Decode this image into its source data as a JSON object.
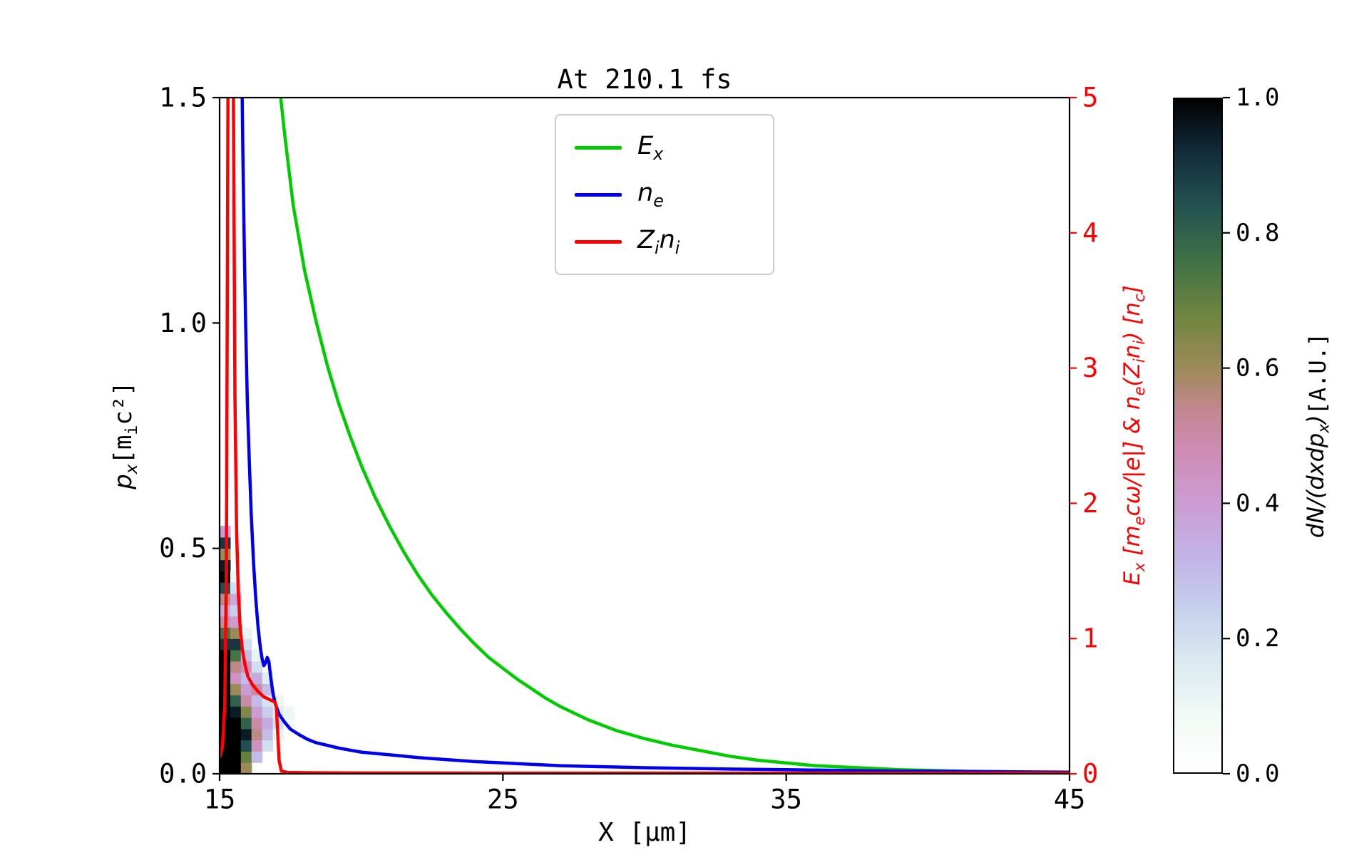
{
  "title": "At 210.1 fs",
  "axes": {
    "x": {
      "label": "X [μm]",
      "range": [
        15,
        45
      ],
      "ticks": [
        15,
        25,
        35,
        45
      ]
    },
    "y_left": {
      "label_math": "p_x",
      "label_unit": " [m_ic²]",
      "range": [
        0,
        1.5
      ],
      "ticks": [
        "0.0",
        "0.5",
        "1.0",
        "1.5"
      ]
    },
    "y_right": {
      "label": "E_x [m_ecω/|e|] & n_e(Z_in_i) [n_c]",
      "color": "#ff0000",
      "range": [
        0,
        5
      ],
      "ticks": [
        "0",
        "1",
        "2",
        "3",
        "4",
        "5"
      ]
    }
  },
  "legend": {
    "entries": [
      {
        "id": "Ex",
        "label": "E_x",
        "color": "#00cc00"
      },
      {
        "id": "ne",
        "label": "n_e",
        "color": "#0000ee"
      },
      {
        "id": "Zini",
        "label": "Z_in_i",
        "color": "#ff0000"
      }
    ]
  },
  "colorbar": {
    "label_math": "dN/(dxdp_x)",
    "label_unit": " [A.U.]",
    "ticks": [
      "0.0",
      "0.2",
      "0.4",
      "0.6",
      "0.8",
      "1.0"
    ],
    "stops": [
      {
        "v": 0.0,
        "c": "#ffffff"
      },
      {
        "v": 0.08,
        "c": "#f3faf6"
      },
      {
        "v": 0.16,
        "c": "#dcebf1"
      },
      {
        "v": 0.24,
        "c": "#c6d1ee"
      },
      {
        "v": 0.32,
        "c": "#c2b3e6"
      },
      {
        "v": 0.4,
        "c": "#cb9cd3"
      },
      {
        "v": 0.48,
        "c": "#cf8bb4"
      },
      {
        "v": 0.54,
        "c": "#c3878f"
      },
      {
        "v": 0.6,
        "c": "#9d8a58"
      },
      {
        "v": 0.68,
        "c": "#6f853f"
      },
      {
        "v": 0.76,
        "c": "#3f7146"
      },
      {
        "v": 0.84,
        "c": "#235350"
      },
      {
        "v": 0.92,
        "c": "#132c3d"
      },
      {
        "v": 1.0,
        "c": "#000000"
      }
    ]
  },
  "chart_data": {
    "type": "line+heatmap",
    "title": "At 210.1 fs",
    "xlabel": "X [μm]",
    "left_ylabel": "p_x [m_i c²]",
    "right_ylabel": "E_x [m_e cω/|e|] & n_e(Z_i n_i) [n_c]",
    "x_range": [
      15,
      45
    ],
    "left_range": [
      0,
      1.5
    ],
    "right_range": [
      0,
      5
    ],
    "legend_position": "upper center-left",
    "series": [
      {
        "id": "Ex",
        "name": "E_x",
        "axis": "right",
        "color": "#00cc00",
        "points": [
          [
            17.0,
            5.3
          ],
          [
            17.3,
            4.72
          ],
          [
            17.6,
            4.2
          ],
          [
            18.0,
            3.72
          ],
          [
            18.4,
            3.35
          ],
          [
            18.8,
            3.02
          ],
          [
            19.2,
            2.74
          ],
          [
            19.6,
            2.5
          ],
          [
            20.0,
            2.28
          ],
          [
            20.5,
            2.04
          ],
          [
            21.0,
            1.83
          ],
          [
            21.5,
            1.64
          ],
          [
            22.0,
            1.47
          ],
          [
            22.5,
            1.32
          ],
          [
            23.0,
            1.19
          ],
          [
            23.5,
            1.07
          ],
          [
            24.0,
            0.96
          ],
          [
            24.5,
            0.86
          ],
          [
            25.0,
            0.78
          ],
          [
            25.5,
            0.7
          ],
          [
            26.0,
            0.63
          ],
          [
            26.5,
            0.56
          ],
          [
            27.0,
            0.5
          ],
          [
            27.5,
            0.45
          ],
          [
            28.0,
            0.4
          ],
          [
            28.5,
            0.36
          ],
          [
            29.0,
            0.32
          ],
          [
            29.5,
            0.29
          ],
          [
            30.0,
            0.26
          ],
          [
            31.0,
            0.21
          ],
          [
            32.0,
            0.17
          ],
          [
            33.0,
            0.13
          ],
          [
            34.0,
            0.1
          ],
          [
            35.0,
            0.08
          ],
          [
            36.0,
            0.06
          ],
          [
            37.0,
            0.05
          ],
          [
            38.0,
            0.04
          ],
          [
            39.0,
            0.03
          ],
          [
            40.0,
            0.025
          ],
          [
            41.0,
            0.02
          ],
          [
            42.0,
            0.015
          ],
          [
            43.0,
            0.012
          ],
          [
            44.0,
            0.01
          ],
          [
            45.0,
            0.008
          ]
        ]
      },
      {
        "id": "ne",
        "name": "n_e",
        "axis": "right",
        "color": "#0000ee",
        "points": [
          [
            15.78,
            5.3
          ],
          [
            15.82,
            4.6
          ],
          [
            15.87,
            3.9
          ],
          [
            15.92,
            3.3
          ],
          [
            15.98,
            2.75
          ],
          [
            16.05,
            2.3
          ],
          [
            16.12,
            1.9
          ],
          [
            16.2,
            1.55
          ],
          [
            16.28,
            1.28
          ],
          [
            16.36,
            1.08
          ],
          [
            16.44,
            0.93
          ],
          [
            16.5,
            0.85
          ],
          [
            16.56,
            0.8
          ],
          [
            16.62,
            0.82
          ],
          [
            16.68,
            0.86
          ],
          [
            16.74,
            0.83
          ],
          [
            16.8,
            0.72
          ],
          [
            16.88,
            0.6
          ],
          [
            16.96,
            0.52
          ],
          [
            17.1,
            0.44
          ],
          [
            17.3,
            0.38
          ],
          [
            17.5,
            0.33
          ],
          [
            17.8,
            0.29
          ],
          [
            18.1,
            0.255
          ],
          [
            18.4,
            0.23
          ],
          [
            18.8,
            0.21
          ],
          [
            19.2,
            0.19
          ],
          [
            19.6,
            0.175
          ],
          [
            20.0,
            0.16
          ],
          [
            20.5,
            0.15
          ],
          [
            21.0,
            0.14
          ],
          [
            21.5,
            0.13
          ],
          [
            22.0,
            0.12
          ],
          [
            23.0,
            0.105
          ],
          [
            24.0,
            0.09
          ],
          [
            25.0,
            0.08
          ],
          [
            26.0,
            0.07
          ],
          [
            27.0,
            0.06
          ],
          [
            28.0,
            0.055
          ],
          [
            29.0,
            0.05
          ],
          [
            30.0,
            0.045
          ],
          [
            31.5,
            0.04
          ],
          [
            33.0,
            0.035
          ],
          [
            35.0,
            0.03
          ],
          [
            37.0,
            0.025
          ],
          [
            39.0,
            0.02
          ],
          [
            41.0,
            0.018
          ],
          [
            43.0,
            0.015
          ],
          [
            45.0,
            0.012
          ]
        ]
      },
      {
        "id": "Zini",
        "name": "Z_in_i",
        "axis": "right",
        "color": "#ff0000",
        "points": [
          [
            15.0,
            0.12
          ],
          [
            15.1,
            0.2
          ],
          [
            15.18,
            0.5
          ],
          [
            15.24,
            1.5
          ],
          [
            15.3,
            5.3
          ],
          [
            15.48,
            5.3
          ],
          [
            15.54,
            2.8
          ],
          [
            15.6,
            1.8
          ],
          [
            15.66,
            1.35
          ],
          [
            15.72,
            1.1
          ],
          [
            15.8,
            0.92
          ],
          [
            15.9,
            0.8
          ],
          [
            16.0,
            0.72
          ],
          [
            16.15,
            0.66
          ],
          [
            16.35,
            0.61
          ],
          [
            16.55,
            0.57
          ],
          [
            16.75,
            0.55
          ],
          [
            16.95,
            0.53
          ],
          [
            17.0,
            0.5
          ],
          [
            17.05,
            0.3
          ],
          [
            17.1,
            0.1
          ],
          [
            17.18,
            0.02
          ],
          [
            17.4,
            0.01
          ],
          [
            18.0,
            0.008
          ],
          [
            20.0,
            0.006
          ],
          [
            25.0,
            0.005
          ],
          [
            30.0,
            0.005
          ],
          [
            35.0,
            0.005
          ],
          [
            40.0,
            0.005
          ],
          [
            45.0,
            0.005
          ]
        ]
      }
    ],
    "histogram": {
      "label": "dN/(dxdp_x) [A.U.]",
      "value_range": [
        0,
        1
      ],
      "x0": 15.0,
      "dx": 0.375,
      "p0": 0.0,
      "dp": 0.025,
      "cells": [
        [
          0,
          0,
          1
        ],
        [
          0,
          1,
          1
        ],
        [
          0,
          2,
          1
        ],
        [
          0,
          3,
          1
        ],
        [
          0,
          4,
          1
        ],
        [
          0,
          5,
          1
        ],
        [
          0,
          6,
          1
        ],
        [
          0,
          7,
          1
        ],
        [
          0,
          8,
          1
        ],
        [
          0,
          9,
          1
        ],
        [
          0,
          10,
          1
        ],
        [
          0,
          11,
          0.9
        ],
        [
          0,
          12,
          0.75
        ],
        [
          0,
          13,
          0.5
        ],
        [
          0,
          14,
          0.35
        ],
        [
          0,
          15,
          0.55
        ],
        [
          0,
          16,
          0.85
        ],
        [
          0,
          17,
          1
        ],
        [
          0,
          18,
          0.95
        ],
        [
          0,
          19,
          0.6
        ],
        [
          0,
          20,
          0.9
        ],
        [
          0,
          21,
          0.4
        ],
        [
          1,
          0,
          1
        ],
        [
          1,
          1,
          1
        ],
        [
          1,
          2,
          1
        ],
        [
          1,
          3,
          1
        ],
        [
          1,
          4,
          1
        ],
        [
          1,
          5,
          0.95
        ],
        [
          1,
          6,
          0.8
        ],
        [
          1,
          7,
          0.6
        ],
        [
          1,
          8,
          0.45
        ],
        [
          1,
          9,
          0.55
        ],
        [
          1,
          10,
          0.75
        ],
        [
          1,
          11,
          0.9
        ],
        [
          1,
          12,
          0.6
        ],
        [
          1,
          13,
          0.4
        ],
        [
          1,
          14,
          0.25
        ],
        [
          1,
          15,
          0.35
        ],
        [
          1,
          16,
          0.2
        ],
        [
          1,
          17,
          0.1
        ],
        [
          2,
          0,
          0.6
        ],
        [
          2,
          1,
          0.7
        ],
        [
          2,
          2,
          0.85
        ],
        [
          2,
          3,
          0.95
        ],
        [
          2,
          4,
          0.8
        ],
        [
          2,
          5,
          0.65
        ],
        [
          2,
          6,
          0.5
        ],
        [
          2,
          7,
          0.4
        ],
        [
          2,
          8,
          0.3
        ],
        [
          2,
          9,
          0.45
        ],
        [
          2,
          10,
          0.3
        ],
        [
          2,
          11,
          0.2
        ],
        [
          2,
          12,
          0.12
        ],
        [
          3,
          1,
          0.3
        ],
        [
          3,
          2,
          0.45
        ],
        [
          3,
          3,
          0.55
        ],
        [
          3,
          4,
          0.5
        ],
        [
          3,
          5,
          0.4
        ],
        [
          3,
          6,
          0.3
        ],
        [
          3,
          7,
          0.5
        ],
        [
          3,
          8,
          0.35
        ],
        [
          3,
          9,
          0.2
        ],
        [
          3,
          10,
          0.12
        ],
        [
          4,
          2,
          0.2
        ],
        [
          4,
          3,
          0.3
        ],
        [
          4,
          4,
          0.35
        ],
        [
          4,
          5,
          0.25
        ],
        [
          4,
          6,
          0.18
        ],
        [
          4,
          7,
          0.3
        ],
        [
          4,
          8,
          0.15
        ],
        [
          5,
          3,
          0.12
        ],
        [
          5,
          4,
          0.2
        ],
        [
          5,
          5,
          0.15
        ],
        [
          5,
          6,
          0.1
        ],
        [
          6,
          4,
          0.08
        ],
        [
          6,
          5,
          0.1
        ]
      ]
    }
  }
}
